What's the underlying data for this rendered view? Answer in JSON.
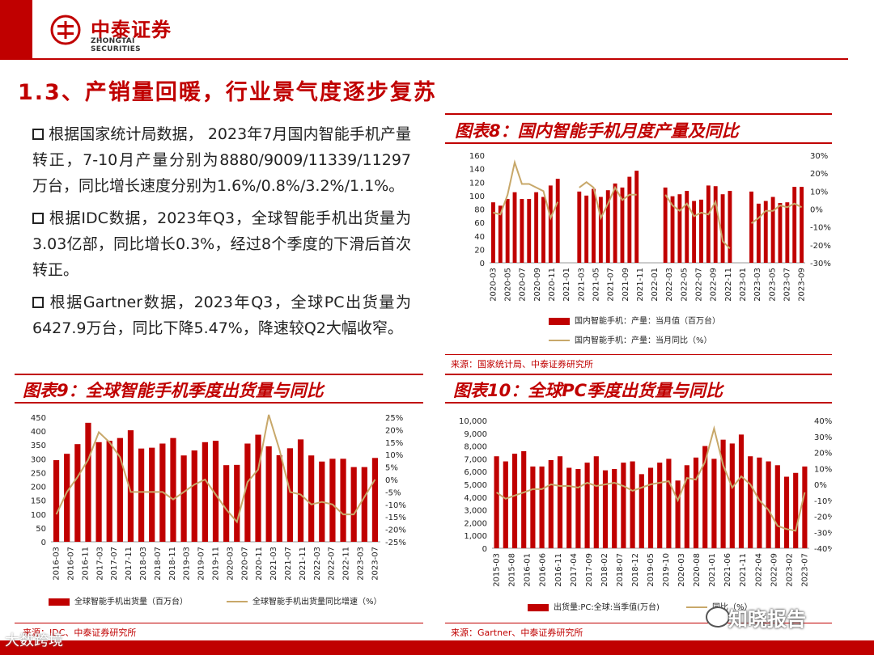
{
  "header": {
    "brand_cn": "中泰证券",
    "brand_en": "ZHONGTAI SECURITIES",
    "accent_color": "#c00000"
  },
  "section_title": "1.3、产销量回暖，行业景气度逐步复苏",
  "bullets": [
    "根据国家统计局数据， 2023年7月国内智能手机产量转正，7-10月产量分别为8880/9009/11339/11297万台，同比增长速度分别为1.6%/0.8%/3.2%/1.1%。",
    "根据IDC数据，2023年Q3，全球智能手机出货量为3.03亿部，同比增长0.3%，经过8个季度的下滑后首次转正。",
    "根据Gartner数据，2023年Q3，全球PC出货量为6427.9万台，同比下降5.47%，降速较Q2大幅收窄。"
  ],
  "figures": {
    "fig8": {
      "title": "图表8：国内智能手机月度产量及同比",
      "source": "来源：国家统计局、中泰证券研究所"
    },
    "fig9": {
      "title": "图表9：全球智能手机季度出货量与同比",
      "source": "来源：IDC、中泰证券研究所"
    },
    "fig10": {
      "title": "图表10：全球PC季度出货量与同比",
      "source": "来源：Gartner、中泰证券研究所"
    }
  },
  "watermarks": {
    "brand": "知晓报告",
    "corner": "大数跨境"
  },
  "chart_data": [
    {
      "id": "fig8",
      "type": "bar",
      "categories": [
        "2020-03",
        "2020-05",
        "2020-07",
        "2020-09",
        "2020-11",
        "2021-01",
        "2021-03",
        "2021-05",
        "2021-07",
        "2021-09",
        "2021-11",
        "2022-01",
        "2022-03",
        "2022-05",
        "2022-07",
        "2022-09",
        "2022-11",
        "2023-01",
        "2023-03",
        "2023-05",
        "2023-07",
        "2023-09"
      ],
      "x": [
        "2020-03",
        "2020-04",
        "2020-05",
        "2020-06",
        "2020-07",
        "2020-08",
        "2020-09",
        "2020-10",
        "2020-11",
        "2020-12",
        "2021-01",
        "2021-02",
        "2021-03",
        "2021-04",
        "2021-05",
        "2021-06",
        "2021-07",
        "2021-08",
        "2021-09",
        "2021-10",
        "2021-11",
        "2021-12",
        "2022-01",
        "2022-02",
        "2022-03",
        "2022-04",
        "2022-05",
        "2022-06",
        "2022-07",
        "2022-08",
        "2022-09",
        "2022-10",
        "2022-11",
        "2022-12",
        "2023-01",
        "2023-02",
        "2023-03",
        "2023-04",
        "2023-05",
        "2023-06",
        "2023-07",
        "2023-08",
        "2023-09",
        "2023-10"
      ],
      "series": [
        {
          "name": "国内智能手机：产量：当月值（百万台）",
          "kind": "bar",
          "axis": "left",
          "values": [
            90,
            85,
            95,
            105,
            95,
            95,
            105,
            98,
            115,
            125,
            null,
            null,
            106,
            100,
            110,
            98,
            108,
            118,
            112,
            128,
            137,
            null,
            null,
            null,
            112,
            99,
            102,
            107,
            92,
            94,
            115,
            114,
            102,
            107,
            null,
            null,
            106,
            88,
            92,
            98,
            89,
            90,
            113,
            113
          ]
        },
        {
          "name": "国内智能手机：产量：当月同比（%）",
          "kind": "line",
          "axis": "right",
          "values": [
            -2,
            -3,
            8,
            26,
            14,
            14,
            12,
            10,
            -5,
            4,
            null,
            null,
            12,
            15,
            12,
            -5,
            3,
            12,
            5,
            8,
            8,
            null,
            null,
            null,
            8,
            2,
            -1,
            3,
            -4,
            -2,
            -3,
            4,
            -18,
            -22,
            null,
            null,
            -8,
            -5,
            -1,
            -1,
            2,
            1,
            3,
            1
          ]
        }
      ],
      "ylim_left": [
        0,
        160
      ],
      "yticks_left": [
        "0",
        "20",
        "40",
        "60",
        "80",
        "100",
        "120",
        "140",
        "160"
      ],
      "ylim_right": [
        -30,
        30
      ],
      "yticks_right": [
        "-30%",
        "-20%",
        "-10%",
        "0%",
        "10%",
        "20%",
        "30%"
      ],
      "legend": [
        "国内智能手机：产量：当月值（百万台）",
        "国内智能手机：产量：当月同比（%）"
      ]
    },
    {
      "id": "fig9",
      "type": "bar",
      "categories": [
        "2016-03",
        "2016-07",
        "2016-11",
        "2017-03",
        "2017-07",
        "2017-11",
        "2018-03",
        "2018-07",
        "2018-11",
        "2019-03",
        "2019-07",
        "2019-11",
        "2020-03",
        "2020-07",
        "2020-11",
        "2021-03",
        "2021-07",
        "2021-11",
        "2022-03",
        "2022-07",
        "2022-11",
        "2023-03",
        "2023-07"
      ],
      "x": [
        "2016Q1",
        "2016Q2",
        "2016Q3",
        "2016Q4",
        "2017Q1",
        "2017Q2",
        "2017Q3",
        "2017Q4",
        "2018Q1",
        "2018Q2",
        "2018Q3",
        "2018Q4",
        "2019Q1",
        "2019Q2",
        "2019Q3",
        "2019Q4",
        "2020Q1",
        "2020Q2",
        "2020Q3",
        "2020Q4",
        "2021Q1",
        "2021Q2",
        "2021Q3",
        "2021Q4",
        "2022Q1",
        "2022Q2",
        "2022Q3",
        "2022Q4",
        "2023Q1",
        "2023Q2",
        "2023Q3"
      ],
      "series": [
        {
          "name": "全球智能手机出货量（百万台）",
          "kind": "bar",
          "axis": "left",
          "values": [
            295,
            318,
            353,
            430,
            360,
            365,
            375,
            403,
            337,
            340,
            355,
            375,
            312,
            330,
            360,
            365,
            277,
            278,
            355,
            387,
            345,
            313,
            338,
            370,
            312,
            290,
            300,
            300,
            270,
            270,
            303
          ]
        },
        {
          "name": "全球智能手机出货量同比增速（%）",
          "kind": "line",
          "axis": "right",
          "values": [
            -14,
            -5,
            1,
            8,
            19,
            15,
            9,
            -5,
            -5,
            -5,
            -5,
            -8,
            -5,
            -2,
            0,
            -6,
            -12,
            -17,
            -1,
            4,
            26,
            12,
            -5,
            -6,
            -10,
            -9,
            -10,
            -14,
            -14,
            -7,
            0
          ]
        }
      ],
      "ylim_left": [
        0,
        450
      ],
      "yticks_left": [
        "0",
        "50",
        "100",
        "150",
        "200",
        "250",
        "300",
        "350",
        "400",
        "450"
      ],
      "ylim_right": [
        -25,
        25
      ],
      "yticks_right": [
        "-25%",
        "-20%",
        "-15%",
        "-10%",
        "-5%",
        "0%",
        "5%",
        "10%",
        "15%",
        "20%",
        "25%"
      ],
      "legend": [
        "全球智能手机出货量（百万台）",
        "全球智能手机出货量同比增速（%）"
      ]
    },
    {
      "id": "fig10",
      "type": "bar",
      "categories": [
        "2015-03",
        "2015-08",
        "2016-01",
        "2016-06",
        "2016-11",
        "2017-04",
        "2017-09",
        "2018-02",
        "2018-07",
        "2018-12",
        "2019-05",
        "2019-10",
        "2020-03",
        "2020-08",
        "2021-01",
        "2021-06",
        "2021-11",
        "2022-04",
        "2022-09",
        "2023-02",
        "2023-07"
      ],
      "x": [
        "2015Q1",
        "2015Q2",
        "2015Q3",
        "2015Q4",
        "2016Q1",
        "2016Q2",
        "2016Q3",
        "2016Q4",
        "2017Q1",
        "2017Q2",
        "2017Q3",
        "2017Q4",
        "2018Q1",
        "2018Q2",
        "2018Q3",
        "2018Q4",
        "2019Q1",
        "2019Q2",
        "2019Q3",
        "2019Q4",
        "2020Q1",
        "2020Q2",
        "2020Q3",
        "2020Q4",
        "2021Q1",
        "2021Q2",
        "2021Q3",
        "2021Q4",
        "2022Q1",
        "2022Q2",
        "2022Q3",
        "2022Q4",
        "2023Q1",
        "2023Q2",
        "2023Q3"
      ],
      "series": [
        {
          "name": "出货量:PC:全球:当季值(万台)",
          "kind": "bar",
          "axis": "left",
          "values": [
            7200,
            6800,
            7400,
            7600,
            6400,
            6400,
            6900,
            7200,
            6300,
            6200,
            6700,
            7200,
            6100,
            6200,
            6700,
            6800,
            5800,
            6300,
            6700,
            7000,
            5300,
            6500,
            7100,
            8000,
            7000,
            8500,
            8200,
            8900,
            7200,
            7100,
            6800,
            6500,
            5600,
            5900,
            6400
          ]
        },
        {
          "name": "同比（%）",
          "kind": "line",
          "axis": "right",
          "values": [
            -5,
            -9,
            -7,
            -5,
            -3,
            -3,
            0,
            -1,
            -1,
            -2,
            1,
            -1,
            0,
            1,
            -1,
            -4,
            -2,
            0,
            1,
            2,
            -10,
            4,
            3,
            14,
            35,
            12,
            -2,
            5,
            0,
            -10,
            -16,
            -26,
            -28,
            -29,
            -5
          ]
        }
      ],
      "ylim_left": [
        0,
        10000
      ],
      "yticks_left": [
        "0",
        "1,000",
        "2,000",
        "3,000",
        "4,000",
        "5,000",
        "6,000",
        "7,000",
        "8,000",
        "9,000",
        "10,000"
      ],
      "ylim_right": [
        -40,
        40
      ],
      "yticks_right": [
        "-40%",
        "-30%",
        "-20%",
        "-10%",
        "0%",
        "10%",
        "20%",
        "30%",
        "40%"
      ],
      "legend": [
        "出货量:PC:全球:当季值(万台)",
        "同比（%）"
      ]
    }
  ]
}
